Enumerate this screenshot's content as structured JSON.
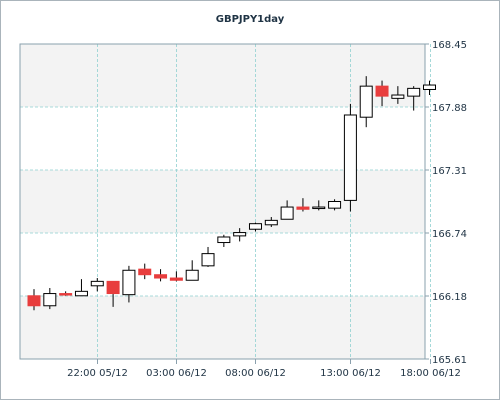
{
  "chart_data": {
    "type": "candlestick",
    "title": "GBPJPY1day",
    "y_ticks": [
      "168.45",
      "167.88",
      "167.31",
      "166.74",
      "166.18",
      "165.61"
    ],
    "ylim": [
      165.61,
      168.45
    ],
    "x_ticks": [
      "22:00 05/12",
      "03:00 06/12",
      "08:00 06/12",
      "13:00 06/12",
      "18:00 06/12"
    ],
    "grid": true,
    "colors": {
      "up_fill": "#ffffff",
      "down_fill": "#e83d3d",
      "outline": "#000000",
      "grid": "#8fd0d0",
      "band": "#f3f3f3",
      "frame": "#aab4bb",
      "text": "#1f3344"
    },
    "candles": [
      {
        "open": 166.18,
        "high": 166.24,
        "low": 166.05,
        "close": 166.09
      },
      {
        "open": 166.09,
        "high": 166.25,
        "low": 166.06,
        "close": 166.2
      },
      {
        "open": 166.2,
        "high": 166.22,
        "low": 166.18,
        "close": 166.19
      },
      {
        "open": 166.18,
        "high": 166.33,
        "low": 166.18,
        "close": 166.22
      },
      {
        "open": 166.27,
        "high": 166.34,
        "low": 166.22,
        "close": 166.31
      },
      {
        "open": 166.31,
        "high": 166.31,
        "low": 166.08,
        "close": 166.2
      },
      {
        "open": 166.19,
        "high": 166.45,
        "low": 166.12,
        "close": 166.41
      },
      {
        "open": 166.42,
        "high": 166.47,
        "low": 166.33,
        "close": 166.37
      },
      {
        "open": 166.37,
        "high": 166.42,
        "low": 166.31,
        "close": 166.34
      },
      {
        "open": 166.34,
        "high": 166.4,
        "low": 166.31,
        "close": 166.32
      },
      {
        "open": 166.32,
        "high": 166.5,
        "low": 166.32,
        "close": 166.41
      },
      {
        "open": 166.45,
        "high": 166.62,
        "low": 166.44,
        "close": 166.56
      },
      {
        "open": 166.66,
        "high": 166.73,
        "low": 166.62,
        "close": 166.71
      },
      {
        "open": 166.72,
        "high": 166.79,
        "low": 166.67,
        "close": 166.75
      },
      {
        "open": 166.78,
        "high": 166.84,
        "low": 166.76,
        "close": 166.83
      },
      {
        "open": 166.82,
        "high": 166.89,
        "low": 166.8,
        "close": 166.86
      },
      {
        "open": 166.87,
        "high": 167.04,
        "low": 166.87,
        "close": 166.98
      },
      {
        "open": 166.98,
        "high": 167.06,
        "low": 166.94,
        "close": 166.96
      },
      {
        "open": 166.97,
        "high": 167.04,
        "low": 166.95,
        "close": 166.98
      },
      {
        "open": 166.97,
        "high": 167.05,
        "low": 166.95,
        "close": 167.03
      },
      {
        "open": 167.04,
        "high": 167.91,
        "low": 166.94,
        "close": 167.81
      },
      {
        "open": 167.79,
        "high": 168.16,
        "low": 167.7,
        "close": 168.07
      },
      {
        "open": 168.07,
        "high": 168.12,
        "low": 167.89,
        "close": 167.98
      },
      {
        "open": 167.96,
        "high": 168.07,
        "low": 167.91,
        "close": 167.99
      },
      {
        "open": 167.98,
        "high": 168.07,
        "low": 167.85,
        "close": 168.05
      },
      {
        "open": 168.04,
        "high": 168.12,
        "low": 167.99,
        "close": 168.08
      }
    ]
  }
}
